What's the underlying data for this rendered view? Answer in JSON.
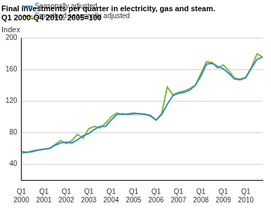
{
  "chart_data": {
    "type": "line",
    "title": [
      "Final investments per quarter in electricity, gas and steam.",
      "Q1 2000-Q4 2010. 2005=100"
    ],
    "y_label": "Index",
    "categories": [
      "Q1 2000",
      null,
      null,
      null,
      "Q1 2001",
      null,
      null,
      null,
      "Q1 2002",
      null,
      null,
      null,
      "Q1 2003",
      null,
      null,
      null,
      "Q1 2004",
      null,
      null,
      null,
      "Q1 2005",
      null,
      null,
      null,
      "Q1 2006",
      null,
      null,
      null,
      "Q1 2007",
      null,
      null,
      null,
      "Q1 2008",
      null,
      null,
      null,
      "Q1 2009",
      null,
      null,
      null,
      "Q1 2010",
      null,
      null,
      null
    ],
    "series": [
      {
        "name": "Seasonally adjusted",
        "color": "#3a87c6",
        "values": [
          56,
          55,
          56,
          58,
          59,
          60,
          64,
          67,
          68,
          67,
          71,
          76,
          79,
          84,
          88,
          88,
          96,
          103,
          104,
          103,
          104,
          104,
          103,
          102,
          96,
          103,
          116,
          127,
          130,
          131,
          134,
          140,
          152,
          167,
          168,
          164,
          161,
          155,
          148,
          147,
          150,
          162,
          173,
          176
        ]
      },
      {
        "name": "Smoothed seasonally adjusted",
        "color": "#7ab834",
        "values": [
          54,
          55,
          57,
          58,
          59,
          60,
          65,
          70,
          66,
          70,
          78,
          73,
          85,
          88,
          86,
          92,
          100,
          105,
          103,
          104,
          105,
          104,
          104,
          101,
          96,
          104,
          138,
          128,
          131,
          133,
          136,
          140,
          155,
          170,
          169,
          162,
          166,
          158,
          149,
          148,
          150,
          163,
          180,
          176
        ]
      }
    ],
    "ylim": [
      20,
      200
    ],
    "yticks": [
      40,
      80,
      120,
      160,
      200
    ],
    "grid": true,
    "legend": "upper left"
  }
}
